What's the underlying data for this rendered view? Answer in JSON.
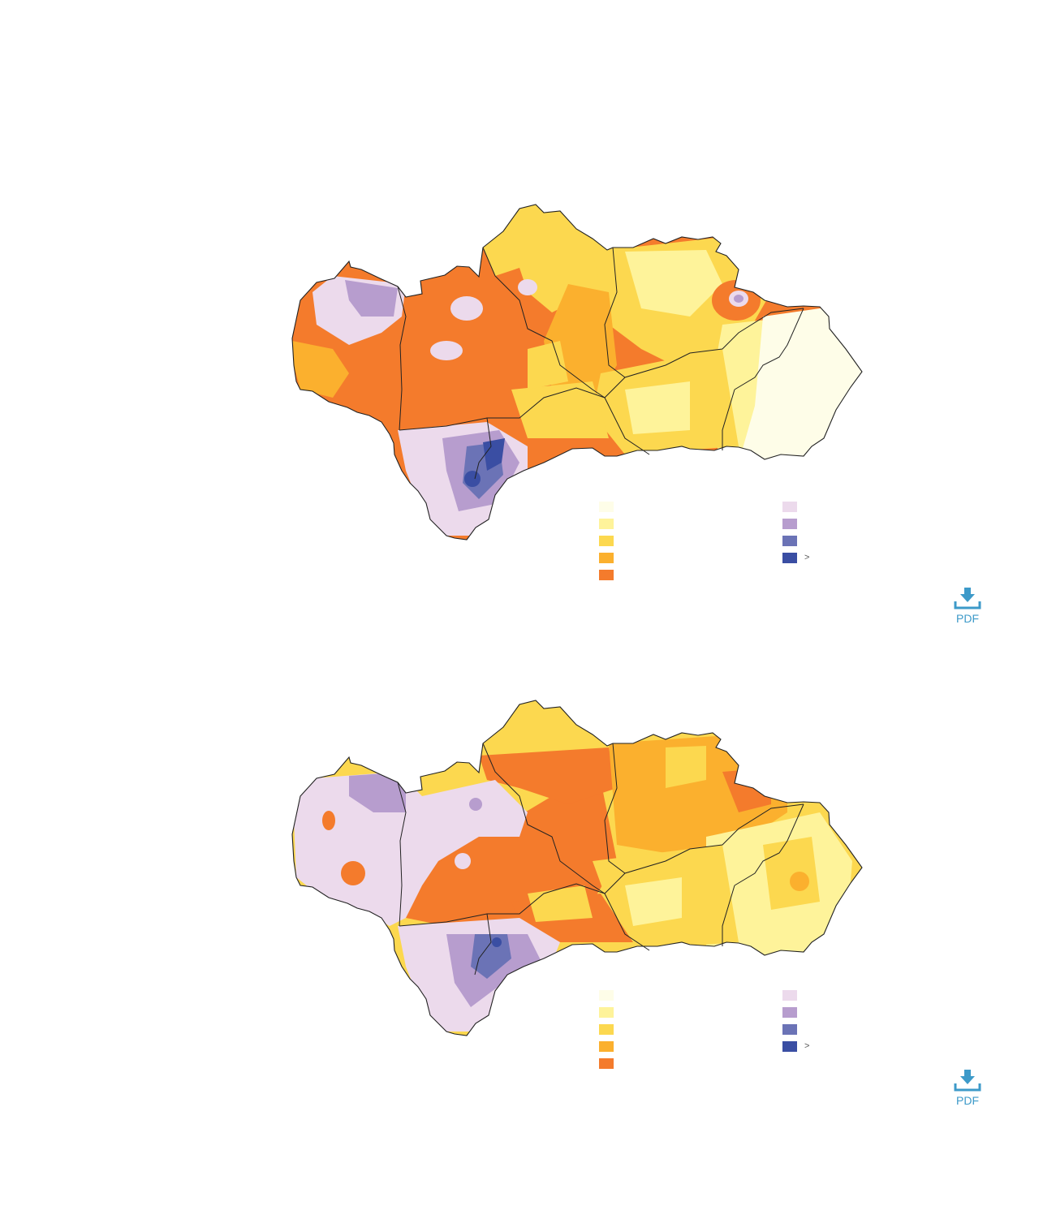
{
  "colors": {
    "background": "#ffffff",
    "border": "#222222",
    "pdf_accent": "#3d9ac9",
    "dry_scale": [
      "#fefde8",
      "#fef39a",
      "#fcd84f",
      "#fbb02e",
      "#f47b2c"
    ],
    "wet_scale": [
      "#ecdaec",
      "#b79dce",
      "#6b73b6",
      "#3a4ea3"
    ]
  },
  "maps": [
    {
      "legend": {
        "dry": [
          {
            "color": "#fefde8",
            "label": ""
          },
          {
            "color": "#fef39a",
            "label": ""
          },
          {
            "color": "#fcd84f",
            "label": ""
          },
          {
            "color": "#fbb02e",
            "label": ""
          },
          {
            "color": "#f47b2c",
            "label": ""
          }
        ],
        "wet": [
          {
            "color": "#ecdaec",
            "label": ""
          },
          {
            "color": "#b79dce",
            "label": ""
          },
          {
            "color": "#6b73b6",
            "label": ""
          },
          {
            "color": "#3a4ea3",
            "label": ">"
          }
        ]
      },
      "pdf_label": "PDF"
    },
    {
      "legend": {
        "dry": [
          {
            "color": "#fefde8",
            "label": ""
          },
          {
            "color": "#fef39a",
            "label": ""
          },
          {
            "color": "#fcd84f",
            "label": ""
          },
          {
            "color": "#fbb02e",
            "label": ""
          },
          {
            "color": "#f47b2c",
            "label": ""
          }
        ],
        "wet": [
          {
            "color": "#ecdaec",
            "label": ""
          },
          {
            "color": "#b79dce",
            "label": ""
          },
          {
            "color": "#6b73b6",
            "label": ""
          },
          {
            "color": "#3a4ea3",
            "label": ">"
          }
        ]
      },
      "pdf_label": "PDF"
    }
  ]
}
